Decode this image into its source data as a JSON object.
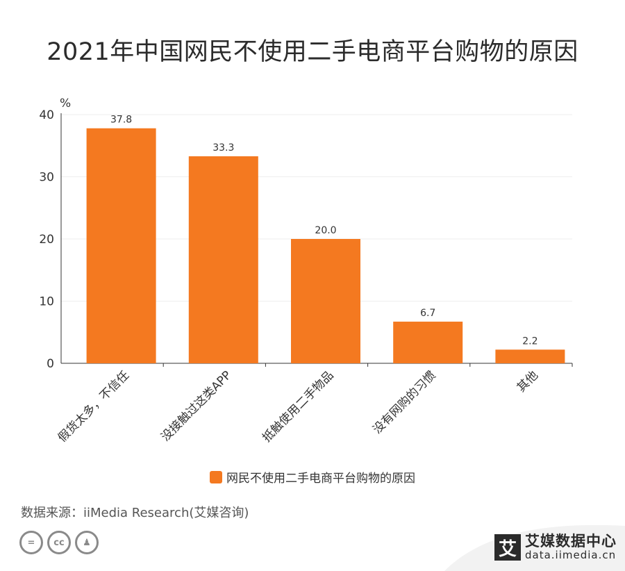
{
  "title": "2021年中国网民不使用二手电商平台购物的原因",
  "source": "数据来源：iiMedia Research(艾媒咨询)",
  "brand": {
    "logo_char": "艾",
    "name": "艾媒数据中心",
    "url": "data.iimedia.cn"
  },
  "license_icons": [
    "equals-icon",
    "cc-icon",
    "person-icon"
  ],
  "license_text": [
    "=",
    "cc",
    "♟"
  ],
  "colors": {
    "bar": "#f47920",
    "axis": "#333333",
    "grid": "#eeeeee"
  },
  "chart_data": {
    "type": "bar",
    "title": "2021年中国网民不使用二手电商平台购物的原因",
    "ylabel": "%",
    "xlabel": "",
    "ylim": [
      0,
      40
    ],
    "yticks": [
      "0",
      "10",
      "20",
      "30",
      "40"
    ],
    "categories": [
      "假货太多，不信任",
      "没接触过这类APP",
      "抵触使用二手物品",
      "没有网购的习惯",
      "其他"
    ],
    "series": [
      {
        "name": "网民不使用二手电商平台购物的原因",
        "values": [
          37.8,
          33.3,
          20.0,
          6.7,
          2.2
        ]
      }
    ],
    "data_labels": [
      "37.8",
      "33.3",
      "20.0",
      "6.7",
      "2.2"
    ],
    "legend": "bottom-center",
    "grid": true
  }
}
